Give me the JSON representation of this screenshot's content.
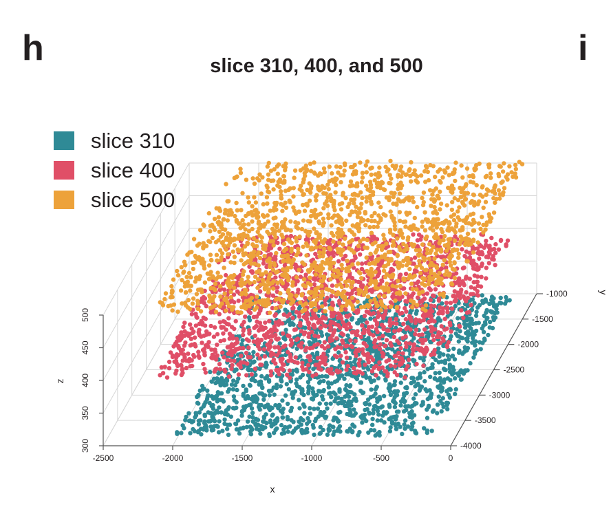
{
  "panel_labels": {
    "left": "h",
    "right": "i"
  },
  "chart_data": {
    "type": "scatter",
    "title": "slice 310, 400, and 500",
    "xlabel": "x",
    "ylabel": "y",
    "zlabel": "z",
    "projection": "3d",
    "xlim": [
      -2500,
      0
    ],
    "ylim": [
      -4000,
      -1000
    ],
    "zlim": [
      300,
      500
    ],
    "x_ticks": [
      -2500,
      -2000,
      -1500,
      -1000,
      -500,
      0
    ],
    "y_ticks": [
      -4000,
      -3500,
      -3000,
      -2500,
      -2000,
      -1500,
      -1000
    ],
    "z_ticks": [
      300,
      350,
      400,
      450,
      500
    ],
    "legend_position": "top-left",
    "series": [
      {
        "name": "slice 310",
        "color": "#2f8a96",
        "z": 310,
        "x_range": [
          -2000,
          -150
        ],
        "y_range": [
          -3900,
          -1200
        ]
      },
      {
        "name": "slice 400",
        "color": "#e04f67",
        "z": 400,
        "x_range": [
          -2150,
          -150
        ],
        "y_range": [
          -3900,
          -1150
        ]
      },
      {
        "name": "slice 500",
        "color": "#eda23a",
        "z": 500,
        "x_range": [
          -2150,
          -100
        ],
        "y_range": [
          -3900,
          -1000
        ]
      }
    ]
  }
}
